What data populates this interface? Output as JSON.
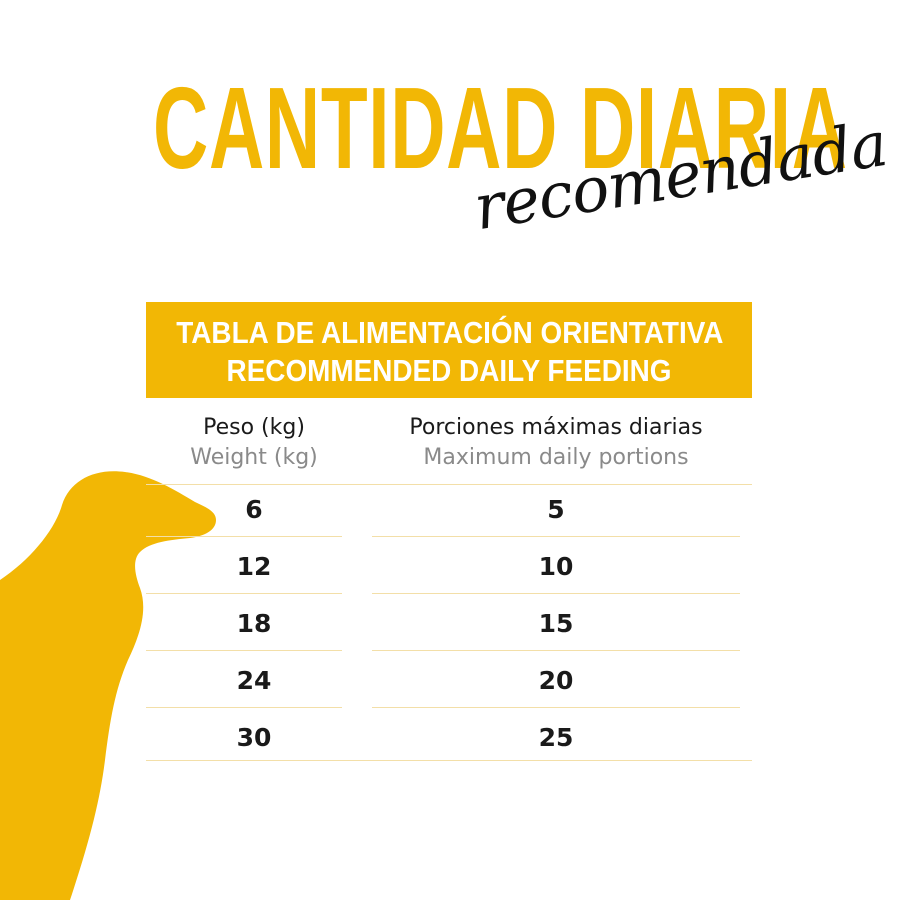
{
  "title": "CANTIDAD DIARIA",
  "subtitle": "recomendada",
  "banner": {
    "line1": "TABLA DE ALIMENTACIÓN ORIENTATIVA",
    "line2": "RECOMMENDED DAILY FEEDING"
  },
  "table": {
    "headers": {
      "weight_es": "Peso (kg)",
      "weight_en": "Weight (kg)",
      "portions_es": "Porciones máximas diarias",
      "portions_en": "Maximum daily portions"
    },
    "rows": [
      {
        "weight": "6",
        "portions": "5"
      },
      {
        "weight": "12",
        "portions": "10"
      },
      {
        "weight": "18",
        "portions": "15"
      },
      {
        "weight": "24",
        "portions": "20"
      },
      {
        "weight": "30",
        "portions": "25"
      }
    ]
  },
  "colors": {
    "accent": "#F2B705",
    "text": "#1a1a1a",
    "muted": "#8a8a8a"
  },
  "icons": {
    "decoration": "dog-silhouette-icon"
  }
}
